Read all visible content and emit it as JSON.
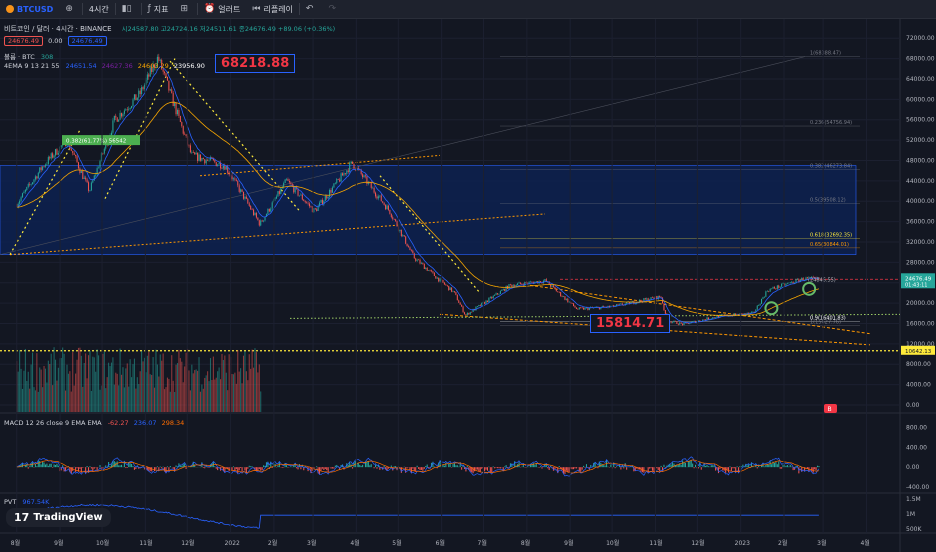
{
  "toolbar": {
    "symbol": "BTCUSD",
    "add_symbol_icon": "plus-circle-icon",
    "interval": "4시간",
    "bar_style_icon": "candles-icon",
    "indicators_label": "지표",
    "layout_icon": "grid-icon",
    "alert_label": "얼러트",
    "replay_label": "리플레이",
    "undo_icon": "undo-icon",
    "redo_icon": "redo-icon"
  },
  "header": {
    "title": "비트코인 / 달러 · 4시간 · BINANCE",
    "ohlc": "시24587.80 고24724.16 저24511.61 종24676.49 +89.06 (+0.36%)",
    "bid": "24676.49",
    "spread": "0.00",
    "ask": "24676.49",
    "volume_label": "볼륨 · BTC",
    "volume_value": "308",
    "ema_label": "4EMA 9 13 21 55",
    "ema_values": [
      "24651.54",
      "24627.36",
      "24603.29",
      "23956.90"
    ]
  },
  "macd_legend": {
    "label": "MACD 12 26 close 9 EMA EMA",
    "values": [
      "-62.27",
      "236.07",
      "298.34"
    ]
  },
  "pvt_legend": {
    "label": "PVT",
    "value": "967.54K"
  },
  "logo": {
    "mark": "17",
    "text": "TradingView"
  },
  "callouts": {
    "high": "68218.88",
    "low": "15814.71"
  },
  "overlay_labels": {
    "ath": "1(68388.47)",
    "fib_0236": "0.236(54756.94)",
    "fib_0382": "0.382(46273.84)",
    "fib_05": "0.5(39508.12)",
    "fib_0618": "0.618(32692.35)",
    "fib_065": "0.65(30844.01)",
    "fib_09": "0.9(16401.83)",
    "fib_1": "1(15627.76)",
    "fib_top": "(24846.55)",
    "left_fib": "0.382(61.77%)  56542",
    "price_badge": "24676.49",
    "price_badge_time": "01:43:11",
    "line_badge": "10642.13",
    "chart_badge": "B"
  },
  "chart_data": {
    "type": "line",
    "x": [
      "2021-08-01",
      "2021-08-20",
      "2021-09-06",
      "2021-09-22",
      "2021-10-10",
      "2021-10-28",
      "2021-11-10",
      "2021-12-04",
      "2021-12-28",
      "2022-01-22",
      "2022-02-10",
      "2022-03-02",
      "2022-03-29",
      "2022-04-25",
      "2022-05-12",
      "2022-06-10",
      "2022-06-18",
      "2022-07-20",
      "2022-08-14",
      "2022-09-06",
      "2022-10-01",
      "2022-11-05",
      "2022-11-09",
      "2022-11-21",
      "2022-12-15",
      "2023-01-10",
      "2023-01-20",
      "2023-02-15",
      "2023-02-26"
    ],
    "series": [
      {
        "values": [
          39500,
          47000,
          52000,
          42000,
          56000,
          61000,
          68218,
          49000,
          47000,
          35500,
          44000,
          38000,
          47500,
          38000,
          29000,
          22000,
          17600,
          23500,
          24400,
          18800,
          19300,
          21300,
          16600,
          15814,
          17400,
          18000,
          22500,
          24800,
          24676
        ]
      }
    ],
    "price_axis": {
      "range": [
        0,
        74000
      ],
      "ticks": [
        "72000.00",
        "68000.00",
        "64000.00",
        "60000.00",
        "56000.00",
        "52000.00",
        "48000.00",
        "44000.00",
        "40000.00",
        "36000.00",
        "32000.00",
        "28000.00",
        "24000.00",
        "20000.00",
        "16000.00",
        "12000.00",
        "8000.00",
        "4000.00",
        "0.00"
      ]
    },
    "time_axis": {
      "ticks": [
        "8월",
        "9월",
        "10월",
        "11월",
        "12월",
        "2022",
        "2월",
        "3월",
        "4월",
        "5월",
        "6월",
        "7월",
        "8월",
        "9월",
        "10월",
        "11월",
        "12월",
        "2023",
        "2월",
        "3월",
        "4월"
      ]
    },
    "macd": {
      "ticks": [
        "800.00",
        "400.00",
        "0.00",
        "-400.00"
      ],
      "range": [
        -500,
        950
      ]
    },
    "pvt": {
      "ticks": [
        "1.5M",
        "1M",
        "500K"
      ],
      "range": [
        400000,
        1600000
      ]
    },
    "colors": {
      "background": "#131722",
      "up": "#26a69a",
      "down": "#ef5350",
      "ema_fast": "#2962ff",
      "ema_slow": "#f7a600",
      "zone": "#0d2150",
      "fib_line": "#ffeb3b",
      "trend_dotted": "#ff9800",
      "price_line": "#f23645",
      "macd_line": "#2962ff",
      "signal_line": "#ff6d00",
      "pvt_line": "#2962ff"
    }
  }
}
